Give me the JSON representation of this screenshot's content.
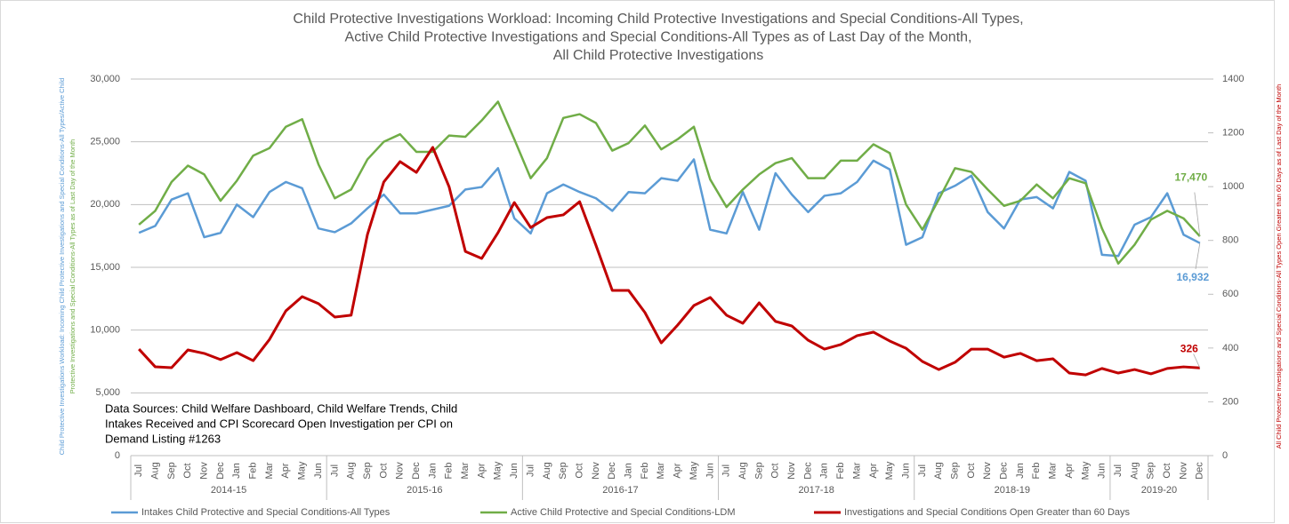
{
  "chart_data": {
    "type": "line",
    "title": [
      "Child Protective Investigations Workload: Incoming Child Protective Investigations and Special Conditions-All Types,",
      "Active Child Protective Investigations and Special Conditions-All Types as of Last Day of the Month,",
      "All Child Protective Investigations"
    ],
    "ylabel": [
      "Child Protective Investigations Workload: Incoming Child Protective Investigations and Special Conditions-All Types/Active Child",
      "Protective Investigations and Special Conditions-All Types as of Last Day of the Month"
    ],
    "y2label": "All Child Protective Investigations  and Special Conditions-All Types Open Greater than 60 Days as of Last Day of the Month",
    "annotation": [
      "Data Sources: Child Welfare Dashboard, Child Welfare Trends, Child",
      "Intakes Received and CPI Scorecard Open Investigation per CPI on",
      "Demand Listing #1263"
    ],
    "category_groups": [
      "2014-15",
      "2015-16",
      "2016-17",
      "2017-18",
      "2018-19",
      "2019-20"
    ],
    "categories": [
      "Jul",
      "Aug",
      "Sep",
      "Oct",
      "Nov",
      "Dec",
      "Jan",
      "Feb",
      "Mar",
      "Apr",
      "May",
      "Jun",
      "Jul",
      "Aug",
      "Sep",
      "Oct",
      "Nov",
      "Dec",
      "Jan",
      "Feb",
      "Mar",
      "Apr",
      "May",
      "Jun",
      "Jul",
      "Aug",
      "Sep",
      "Oct",
      "Nov",
      "Dec",
      "Jan",
      "Feb",
      "Mar",
      "Apr",
      "May",
      "Jun",
      "Jul",
      "Aug",
      "Sep",
      "Oct",
      "Nov",
      "Dec",
      "Jan",
      "Feb",
      "Mar",
      "Apr",
      "May",
      "Jun",
      "Jul",
      "Aug",
      "Sep",
      "Oct",
      "Nov",
      "Dec",
      "Jan",
      "Feb",
      "Mar",
      "Apr",
      "May",
      "Jun",
      "Jul",
      "Aug",
      "Sep",
      "Oct",
      "Nov",
      "Dec"
    ],
    "series": [
      {
        "name": "Intakes Child Protective and Special Conditions-All Types",
        "color": "#5b9bd5",
        "values": [
          17750,
          18300,
          20400,
          20900,
          17400,
          17750,
          20000,
          19000,
          21000,
          21800,
          21300,
          18100,
          17800,
          18500,
          19700,
          20800,
          19300,
          19300,
          19600,
          19900,
          21200,
          21400,
          22900,
          18900,
          17700,
          20900,
          21600,
          21000,
          20500,
          19500,
          21000,
          20900,
          22100,
          21900,
          23600,
          18000,
          17700,
          21000,
          18000,
          22500,
          20800,
          19400,
          20700,
          20900,
          21800,
          23500,
          22800,
          16800,
          17400,
          20900,
          21500,
          22300,
          19400,
          18100,
          20400,
          20600,
          19700,
          22600,
          21900,
          16000,
          15900,
          18400,
          19000,
          20900,
          17600,
          16932
        ],
        "value_labels": [
          null,
          null,
          null,
          null,
          null,
          null,
          null,
          null,
          null,
          null,
          null,
          null,
          null,
          null,
          null,
          null,
          null,
          null,
          null,
          null,
          null,
          null,
          null,
          null,
          null,
          null,
          null,
          null,
          null,
          null,
          null,
          null,
          null,
          null,
          null,
          null,
          null,
          null,
          null,
          null,
          null,
          null,
          null,
          null,
          null,
          null,
          null,
          null,
          null,
          null,
          null,
          null,
          null,
          null,
          null,
          null,
          null,
          null,
          null,
          null,
          null,
          null,
          null,
          null,
          null,
          "16,932"
        ]
      },
      {
        "name": "Active Child Protective and Special Conditions-LDM",
        "color": "#70ad47",
        "values": [
          18400,
          19500,
          21800,
          23100,
          22400,
          20300,
          21900,
          23900,
          24500,
          26200,
          26800,
          23200,
          20500,
          21200,
          23600,
          25000,
          25600,
          24200,
          24200,
          25500,
          25400,
          26700,
          28200,
          25200,
          22100,
          23700,
          26900,
          27200,
          26500,
          24300,
          24900,
          26300,
          24400,
          25200,
          26200,
          22000,
          19800,
          21200,
          22400,
          23300,
          23700,
          22100,
          22100,
          23500,
          23500,
          24800,
          24100,
          20000,
          18000,
          20400,
          22900,
          22600,
          21200,
          19900,
          20300,
          21600,
          20500,
          22100,
          21700,
          18100,
          15300,
          16800,
          18800,
          19500,
          18900,
          17470
        ],
        "value_labels": [
          null,
          null,
          null,
          null,
          null,
          null,
          null,
          null,
          null,
          null,
          null,
          null,
          null,
          null,
          null,
          null,
          null,
          null,
          null,
          null,
          null,
          null,
          null,
          null,
          null,
          null,
          null,
          null,
          null,
          null,
          null,
          null,
          null,
          null,
          null,
          null,
          null,
          null,
          null,
          null,
          null,
          null,
          null,
          null,
          null,
          null,
          null,
          null,
          null,
          null,
          null,
          null,
          null,
          null,
          null,
          null,
          null,
          null,
          null,
          null,
          null,
          null,
          null,
          null,
          null,
          "17,470"
        ]
      },
      {
        "name": "Investigations and Special Conditions Open Greater than 60 Days",
        "color": "#c00000",
        "axis": "y2",
        "values": [
          396,
          330,
          327,
          393,
          380,
          357,
          383,
          353,
          432,
          538,
          591,
          565,
          515,
          522,
          822,
          1017,
          1093,
          1053,
          1146,
          1000,
          759,
          733,
          829,
          941,
          848,
          885,
          895,
          944,
          782,
          614,
          614,
          532,
          419,
          485,
          558,
          588,
          522,
          492,
          568,
          499,
          482,
          429,
          396,
          413,
          446,
          459,
          426,
          399,
          350,
          320,
          347,
          396,
          396,
          366,
          380,
          353,
          360,
          307,
          300,
          324,
          307,
          320,
          304,
          324,
          330,
          326
        ],
        "value_labels": [
          null,
          null,
          null,
          null,
          null,
          null,
          null,
          null,
          null,
          null,
          null,
          null,
          null,
          null,
          null,
          null,
          null,
          null,
          null,
          null,
          null,
          null,
          null,
          null,
          null,
          null,
          null,
          null,
          null,
          null,
          null,
          null,
          null,
          null,
          null,
          null,
          null,
          null,
          null,
          null,
          null,
          null,
          null,
          null,
          null,
          null,
          null,
          null,
          null,
          null,
          null,
          null,
          null,
          null,
          null,
          null,
          null,
          null,
          null,
          null,
          null,
          null,
          null,
          null,
          null,
          "326"
        ]
      }
    ],
    "ylim": [
      0,
      30000
    ],
    "yticks": [
      0,
      {
        "value": 5000,
        "label": "5,000"
      },
      {
        "value": 10000,
        "label": "10,000"
      },
      {
        "value": 15000,
        "label": "15,000"
      },
      {
        "value": 20000,
        "label": "20,000"
      },
      {
        "value": 25000,
        "label": "25,000"
      },
      {
        "value": 30000,
        "label": "30,000"
      }
    ],
    "y2lim": [
      0,
      1400
    ],
    "y2ticks": [
      0,
      200,
      400,
      600,
      800,
      1000,
      1200,
      1400
    ],
    "grid": true,
    "legend": "bottom"
  }
}
